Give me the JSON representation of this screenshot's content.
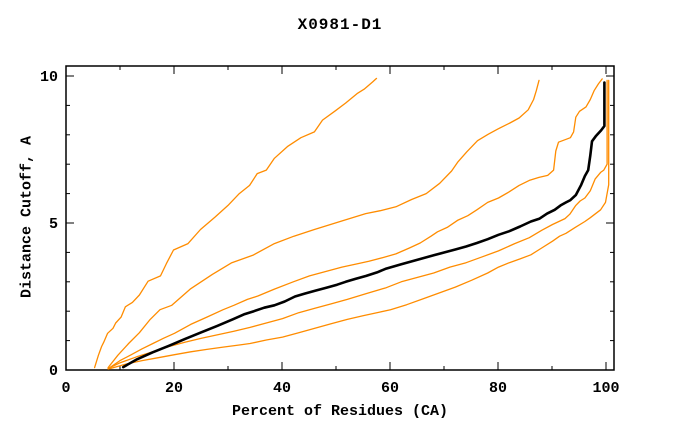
{
  "title": "X0981-D1",
  "chart_data": {
    "type": "line",
    "title": "X0981-D1",
    "xlabel": "Percent of Residues (CA)",
    "ylabel": "Distance Cutoff, A",
    "xlim": [
      0,
      100
    ],
    "ylim": [
      0,
      10
    ],
    "grid": false,
    "legend": "none",
    "x_major_ticks": [
      0,
      20,
      40,
      60,
      80,
      100
    ],
    "x_tick_labels": [
      "0",
      "20",
      "40",
      "60",
      "80",
      "100"
    ],
    "x_minor_ticks": [
      10,
      30,
      50,
      70,
      90
    ],
    "y_major_ticks": [
      0,
      5,
      10
    ],
    "y_tick_labels": [
      "0",
      "5",
      "10"
    ],
    "y_minor_ticks": [
      1,
      2,
      3,
      4,
      6,
      7,
      8,
      9
    ],
    "colors": {
      "highlight_series": "#000000",
      "other_series": "#ff8c00",
      "frame": "#000000",
      "background": "#ffffff"
    },
    "series": [
      {
        "name": "orange-curve-1",
        "color": "#ff8c00",
        "width": 1.3,
        "points": [
          [
            5.3,
            0.08
          ],
          [
            6.0,
            0.5
          ],
          [
            6.6,
            0.8
          ],
          [
            7.0,
            0.95
          ],
          [
            7.7,
            1.25
          ],
          [
            8.7,
            1.42
          ],
          [
            9.2,
            1.6
          ],
          [
            10.2,
            1.8
          ],
          [
            11.0,
            2.15
          ],
          [
            12.3,
            2.3
          ],
          [
            13.6,
            2.55
          ],
          [
            15.2,
            3.02
          ],
          [
            17.5,
            3.2
          ],
          [
            18.6,
            3.62
          ],
          [
            19.9,
            4.08
          ],
          [
            22.6,
            4.3
          ],
          [
            24.9,
            4.78
          ],
          [
            27.6,
            5.2
          ],
          [
            30.0,
            5.6
          ],
          [
            32.1,
            6.0
          ],
          [
            34.0,
            6.28
          ],
          [
            35.4,
            6.68
          ],
          [
            37.1,
            6.8
          ],
          [
            38.6,
            7.2
          ],
          [
            41.0,
            7.6
          ],
          [
            43.5,
            7.9
          ],
          [
            46.0,
            8.1
          ],
          [
            47.5,
            8.5
          ],
          [
            49.9,
            8.82
          ],
          [
            51.8,
            9.08
          ],
          [
            53.9,
            9.4
          ],
          [
            55.2,
            9.55
          ],
          [
            56.8,
            9.8
          ],
          [
            57.5,
            9.92
          ]
        ]
      },
      {
        "name": "orange-curve-2",
        "color": "#ff8c00",
        "width": 1.3,
        "points": [
          [
            7.8,
            0.08
          ],
          [
            9.6,
            0.5
          ],
          [
            11.6,
            0.9
          ],
          [
            13.6,
            1.27
          ],
          [
            15.6,
            1.72
          ],
          [
            17.4,
            2.05
          ],
          [
            19.6,
            2.2
          ],
          [
            23.0,
            2.75
          ],
          [
            27.1,
            3.25
          ],
          [
            30.7,
            3.65
          ],
          [
            34.6,
            3.9
          ],
          [
            38.6,
            4.3
          ],
          [
            42.2,
            4.55
          ],
          [
            46.0,
            4.78
          ],
          [
            51.6,
            5.1
          ],
          [
            55.5,
            5.32
          ],
          [
            58.2,
            5.42
          ],
          [
            61.1,
            5.55
          ],
          [
            64.0,
            5.8
          ],
          [
            66.7,
            6.0
          ],
          [
            69.2,
            6.35
          ],
          [
            71.4,
            6.77
          ],
          [
            72.6,
            7.08
          ],
          [
            74.2,
            7.42
          ],
          [
            76.2,
            7.8
          ],
          [
            78.2,
            8.02
          ],
          [
            80.0,
            8.2
          ],
          [
            82.2,
            8.4
          ],
          [
            83.9,
            8.57
          ],
          [
            85.6,
            8.85
          ],
          [
            86.6,
            9.2
          ],
          [
            87.1,
            9.5
          ],
          [
            87.6,
            9.85
          ]
        ]
      },
      {
        "name": "orange-curve-3",
        "color": "#ff8c00",
        "width": 1.3,
        "points": [
          [
            7.8,
            0.04
          ],
          [
            10.0,
            0.32
          ],
          [
            12.1,
            0.52
          ],
          [
            14.1,
            0.72
          ],
          [
            16.1,
            0.9
          ],
          [
            18.1,
            1.08
          ],
          [
            20.1,
            1.25
          ],
          [
            23.1,
            1.55
          ],
          [
            26.1,
            1.8
          ],
          [
            29.1,
            2.05
          ],
          [
            31.1,
            2.2
          ],
          [
            33.6,
            2.4
          ],
          [
            35.6,
            2.52
          ],
          [
            38.6,
            2.75
          ],
          [
            42.1,
            3.0
          ],
          [
            45.1,
            3.2
          ],
          [
            48.1,
            3.35
          ],
          [
            51.1,
            3.5
          ],
          [
            54.1,
            3.62
          ],
          [
            56.1,
            3.7
          ],
          [
            58.6,
            3.82
          ],
          [
            61.1,
            3.95
          ],
          [
            63.6,
            4.15
          ],
          [
            65.6,
            4.32
          ],
          [
            67.6,
            4.55
          ],
          [
            68.8,
            4.7
          ],
          [
            70.6,
            4.85
          ],
          [
            72.6,
            5.1
          ],
          [
            74.4,
            5.25
          ],
          [
            76.1,
            5.45
          ],
          [
            78.1,
            5.7
          ],
          [
            80.1,
            5.85
          ],
          [
            82.0,
            6.05
          ],
          [
            83.9,
            6.28
          ],
          [
            85.8,
            6.45
          ],
          [
            87.6,
            6.55
          ],
          [
            89.2,
            6.62
          ],
          [
            90.3,
            6.8
          ],
          [
            90.7,
            7.45
          ],
          [
            91.2,
            7.75
          ],
          [
            93.4,
            7.9
          ],
          [
            94.0,
            8.1
          ],
          [
            94.4,
            8.6
          ],
          [
            95.1,
            8.8
          ],
          [
            96.3,
            8.95
          ],
          [
            97.1,
            9.2
          ],
          [
            97.8,
            9.5
          ],
          [
            98.6,
            9.73
          ],
          [
            99.3,
            9.9
          ]
        ]
      },
      {
        "name": "orange-curve-4",
        "color": "#ff8c00",
        "width": 1.3,
        "points": [
          [
            7.8,
            0.05
          ],
          [
            10.1,
            0.25
          ],
          [
            13.1,
            0.45
          ],
          [
            16.1,
            0.62
          ],
          [
            19.1,
            0.8
          ],
          [
            22.1,
            0.95
          ],
          [
            25.1,
            1.08
          ],
          [
            28.1,
            1.2
          ],
          [
            31.1,
            1.32
          ],
          [
            34.1,
            1.45
          ],
          [
            37.1,
            1.6
          ],
          [
            40.1,
            1.75
          ],
          [
            43.1,
            1.95
          ],
          [
            46.1,
            2.1
          ],
          [
            49.1,
            2.25
          ],
          [
            52.1,
            2.4
          ],
          [
            55.6,
            2.6
          ],
          [
            59.3,
            2.8
          ],
          [
            62.1,
            3.0
          ],
          [
            65.1,
            3.15
          ],
          [
            68.1,
            3.3
          ],
          [
            71.1,
            3.5
          ],
          [
            74.1,
            3.65
          ],
          [
            77.1,
            3.85
          ],
          [
            80.1,
            4.05
          ],
          [
            83.1,
            4.3
          ],
          [
            85.8,
            4.5
          ],
          [
            88.1,
            4.75
          ],
          [
            90.1,
            4.95
          ],
          [
            92.4,
            5.15
          ],
          [
            93.3,
            5.3
          ],
          [
            94.4,
            5.6
          ],
          [
            95.2,
            5.75
          ],
          [
            96.1,
            5.85
          ],
          [
            97.1,
            6.1
          ],
          [
            98.0,
            6.5
          ],
          [
            99.0,
            6.72
          ],
          [
            99.6,
            6.8
          ],
          [
            100.2,
            7.0
          ],
          [
            100.2,
            9.85
          ]
        ]
      },
      {
        "name": "orange-curve-5",
        "color": "#ff8c00",
        "width": 1.3,
        "points": [
          [
            7.8,
            0.03
          ],
          [
            11.1,
            0.2
          ],
          [
            14.1,
            0.32
          ],
          [
            17.1,
            0.42
          ],
          [
            20.1,
            0.52
          ],
          [
            23.1,
            0.62
          ],
          [
            26.1,
            0.7
          ],
          [
            29.1,
            0.78
          ],
          [
            32.1,
            0.85
          ],
          [
            34.1,
            0.9
          ],
          [
            37.1,
            1.02
          ],
          [
            40.1,
            1.12
          ],
          [
            43.1,
            1.27
          ],
          [
            46.1,
            1.42
          ],
          [
            49.1,
            1.57
          ],
          [
            52.1,
            1.72
          ],
          [
            55.1,
            1.85
          ],
          [
            58.1,
            1.97
          ],
          [
            60.1,
            2.05
          ],
          [
            63.1,
            2.22
          ],
          [
            66.1,
            2.42
          ],
          [
            69.1,
            2.62
          ],
          [
            72.1,
            2.82
          ],
          [
            75.1,
            3.05
          ],
          [
            78.1,
            3.3
          ],
          [
            80.1,
            3.5
          ],
          [
            82.1,
            3.65
          ],
          [
            84.1,
            3.78
          ],
          [
            86.1,
            3.92
          ],
          [
            88.1,
            4.15
          ],
          [
            90.1,
            4.38
          ],
          [
            91.4,
            4.55
          ],
          [
            92.6,
            4.65
          ],
          [
            94.3,
            4.85
          ],
          [
            96.1,
            5.05
          ],
          [
            97.1,
            5.18
          ],
          [
            99.0,
            5.45
          ],
          [
            99.9,
            5.7
          ],
          [
            100.5,
            6.3
          ],
          [
            100.5,
            9.85
          ]
        ]
      },
      {
        "name": "black-model-curve",
        "color": "#000000",
        "width": 2.6,
        "points": [
          [
            10.6,
            0.1
          ],
          [
            13.0,
            0.35
          ],
          [
            16.0,
            0.6
          ],
          [
            19.0,
            0.82
          ],
          [
            22.0,
            1.05
          ],
          [
            25.0,
            1.28
          ],
          [
            28.0,
            1.5
          ],
          [
            31.0,
            1.73
          ],
          [
            33.1,
            1.9
          ],
          [
            34.8,
            2.0
          ],
          [
            36.7,
            2.12
          ],
          [
            38.6,
            2.2
          ],
          [
            40.5,
            2.33
          ],
          [
            42.4,
            2.5
          ],
          [
            44.2,
            2.6
          ],
          [
            46.2,
            2.7
          ],
          [
            48.2,
            2.8
          ],
          [
            50.2,
            2.9
          ],
          [
            51.8,
            3.0
          ],
          [
            53.6,
            3.1
          ],
          [
            55.6,
            3.2
          ],
          [
            57.6,
            3.32
          ],
          [
            59.3,
            3.45
          ],
          [
            62.1,
            3.6
          ],
          [
            64.1,
            3.7
          ],
          [
            66.1,
            3.8
          ],
          [
            68.1,
            3.9
          ],
          [
            70.1,
            4.0
          ],
          [
            72.1,
            4.1
          ],
          [
            74.1,
            4.2
          ],
          [
            76.1,
            4.32
          ],
          [
            78.1,
            4.45
          ],
          [
            80.1,
            4.6
          ],
          [
            82.1,
            4.72
          ],
          [
            84.1,
            4.88
          ],
          [
            86.1,
            5.05
          ],
          [
            87.7,
            5.15
          ],
          [
            89.1,
            5.32
          ],
          [
            90.5,
            5.45
          ],
          [
            91.6,
            5.6
          ],
          [
            92.6,
            5.7
          ],
          [
            93.4,
            5.78
          ],
          [
            94.4,
            5.95
          ],
          [
            95.4,
            6.3
          ],
          [
            96.1,
            6.6
          ],
          [
            96.7,
            6.8
          ],
          [
            97.1,
            7.3
          ],
          [
            97.4,
            7.78
          ],
          [
            98.1,
            7.95
          ],
          [
            99.1,
            8.15
          ],
          [
            99.7,
            8.3
          ],
          [
            99.7,
            9.1
          ],
          [
            99.7,
            9.78
          ]
        ]
      }
    ]
  }
}
